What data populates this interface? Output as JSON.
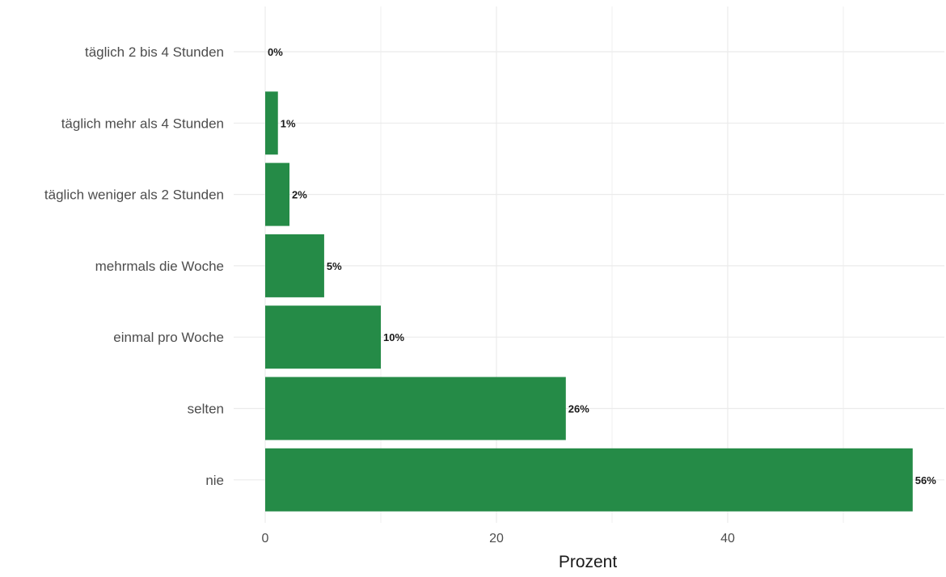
{
  "chart_data": {
    "type": "bar",
    "orientation": "horizontal",
    "categories": [
      "täglich 2 bis 4 Stunden",
      "täglich mehr als 4 Stunden",
      "täglich weniger als 2 Stunden",
      "mehrmals die Woche",
      "einmal pro Woche",
      "selten",
      "nie"
    ],
    "values": [
      0.0,
      1.1,
      2.1,
      5.1,
      10.0,
      26.0,
      56.0
    ],
    "data_labels": [
      "0%",
      "1%",
      "2%",
      "5%",
      "10%",
      "26%",
      "56%"
    ],
    "title": "",
    "xlabel": "Prozent",
    "ylabel": "",
    "xlim": [
      0,
      57
    ],
    "x_ticks": [
      0,
      20,
      40
    ],
    "x_tick_labels": [
      "0",
      "20",
      "40"
    ],
    "grid": true,
    "bar_color": "#258B47",
    "grid_color": "#EBEBEB"
  }
}
